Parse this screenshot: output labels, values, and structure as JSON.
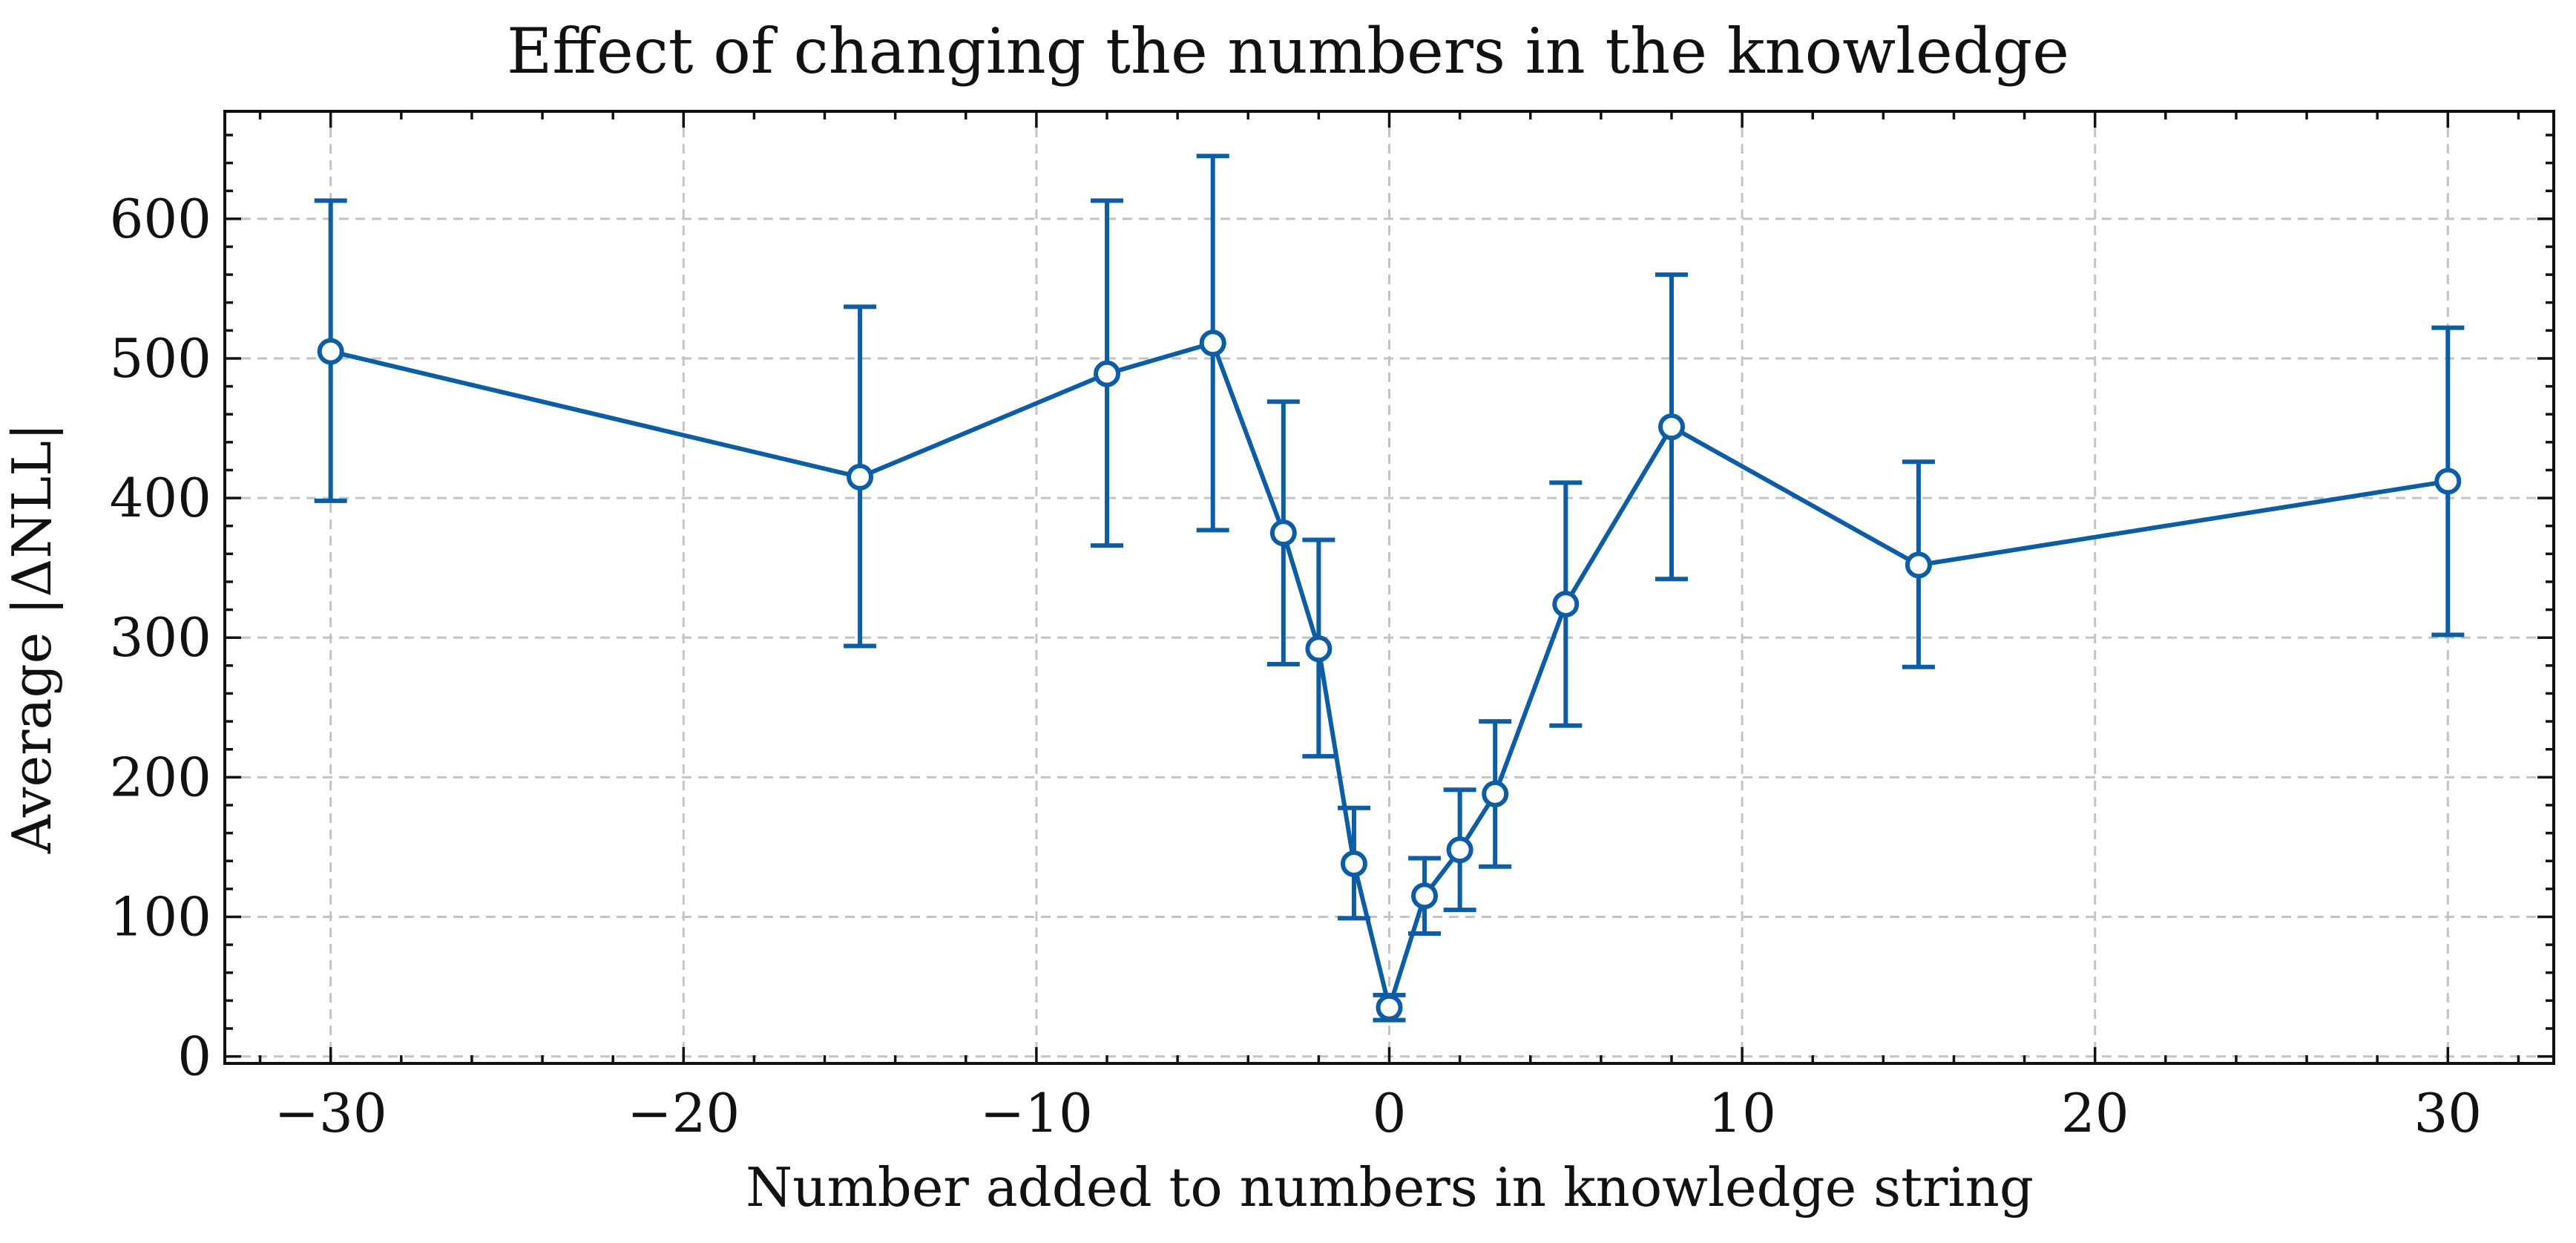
{
  "chart_data": {
    "type": "line",
    "title": "Effect of changing the numbers in the knowledge",
    "xlabel": "Number added to numbers in knowledge string",
    "ylabel": "Average |ΔNLL|",
    "xlim": [
      -33,
      33
    ],
    "ylim": [
      -5,
      677
    ],
    "xticks": [
      -30,
      -20,
      -10,
      0,
      10,
      20,
      30
    ],
    "yticks": [
      0,
      100,
      200,
      300,
      400,
      500,
      600
    ],
    "xtick_labels": [
      "−30",
      "−20",
      "−10",
      "0",
      "10",
      "20",
      "30"
    ],
    "ytick_labels": [
      "0",
      "100",
      "200",
      "300",
      "400",
      "500",
      "600"
    ],
    "grid": true,
    "colors": {
      "series": "#0c5da5",
      "grid": "#c4c4c4"
    },
    "series": [
      {
        "marker": "open-circle",
        "x": [
          -30,
          -15,
          -8,
          -5,
          -3,
          -2,
          -1,
          0,
          1,
          2,
          3,
          5,
          8,
          15,
          30
        ],
        "y": [
          505,
          415,
          489,
          511,
          375,
          292,
          138,
          35,
          115,
          148,
          188,
          324,
          451,
          352,
          412
        ],
        "err_low": [
          398,
          294,
          366,
          377,
          281,
          215,
          99,
          26,
          88,
          105,
          136,
          237,
          342,
          279,
          302
        ],
        "err_high": [
          613,
          537,
          613,
          645,
          469,
          370,
          178,
          44,
          142,
          191,
          240,
          411,
          560,
          426,
          522
        ]
      }
    ]
  }
}
